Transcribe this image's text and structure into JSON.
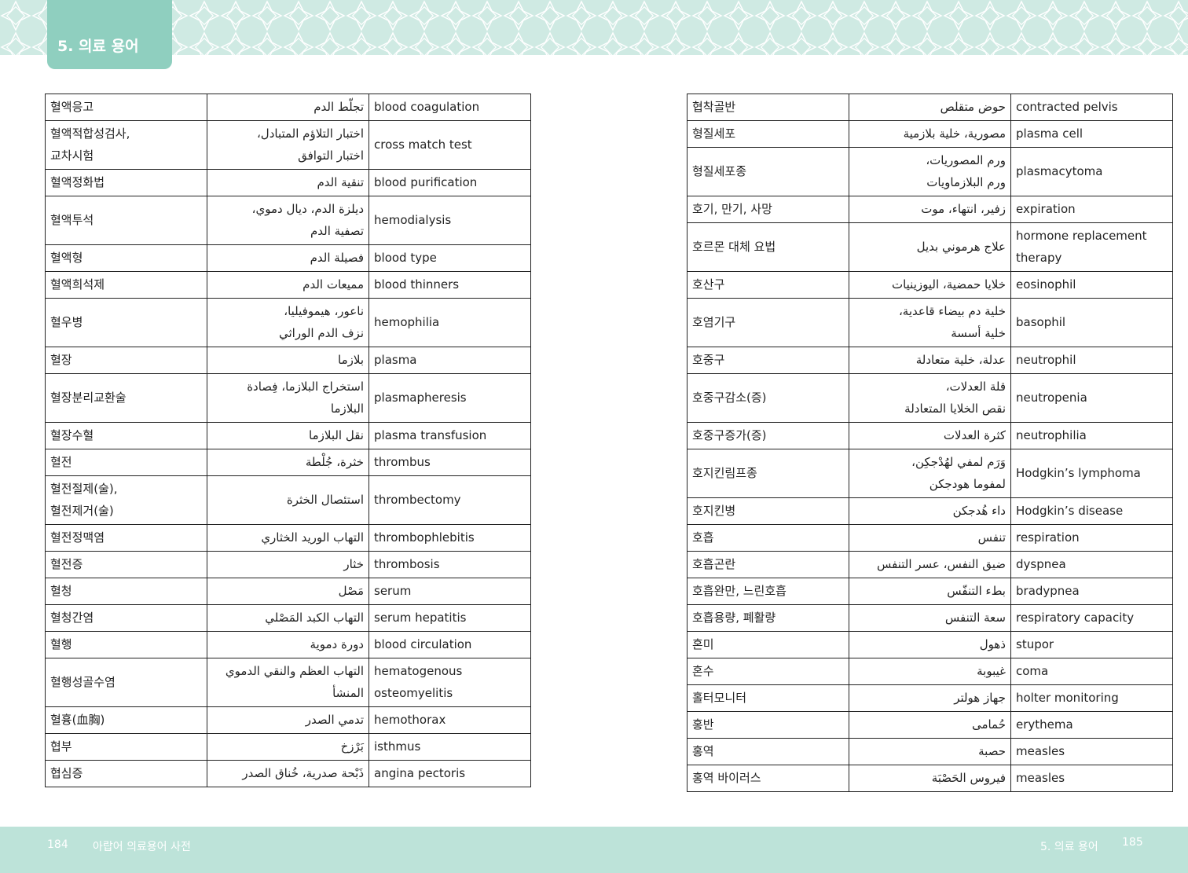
{
  "header": {
    "tab": "5. 의료 용어"
  },
  "tables": [
    {
      "rows": [
        [
          "혈액응고",
          "تجلّط الدم",
          "blood coagulation"
        ],
        [
          "혈액적합성검사,\n교차시험",
          "اختبار التلاؤم المتبادل،\nاختبار التوافق",
          "cross match test"
        ],
        [
          "혈액정화법",
          "تنقية الدم",
          "blood purification"
        ],
        [
          "혈액투석",
          "ديلزة الدم، ديال دموي،\nتصفية الدم",
          "hemodialysis"
        ],
        [
          "혈액형",
          "فصيلة الدم",
          "blood type"
        ],
        [
          "혈액희석제",
          "مميعات الدم",
          "blood thinners"
        ],
        [
          "혈우병",
          "ناعور، هيموفيليا،\nنزف الدم الوراثي",
          "hemophilia"
        ],
        [
          "혈장",
          "بلازما",
          "plasma"
        ],
        [
          "혈장분리교환술",
          "استخراج البلازما، فِصادة\nالبلازما",
          "plasmapheresis"
        ],
        [
          "혈장수혈",
          "نقل البلازما",
          "plasma transfusion"
        ],
        [
          "혈전",
          "خثرة، جُلْطة",
          "thrombus"
        ],
        [
          "혈전절제(술),\n혈전제거(술)",
          "استئصال الخثرة",
          "thrombectomy"
        ],
        [
          "혈전정맥염",
          "التهاب الوريد الخثاري",
          "thrombophlebitis"
        ],
        [
          "혈전증",
          "خثار",
          "thrombosis"
        ],
        [
          "혈청",
          "مَصْل",
          "serum"
        ],
        [
          "혈청간염",
          "التهاب الكبد المَصْلي",
          "serum hepatitis"
        ],
        [
          "혈행",
          "دورة دموية",
          "blood circulation"
        ],
        [
          "혈행성골수염",
          "التهاب العظم والنقي الدموي\nالمنشأ",
          "hematogenous\nosteomyelitis"
        ],
        [
          "혈흉(血胸)",
          "تدمي الصدر",
          "hemothorax"
        ],
        [
          "협부",
          "بَرْزخ",
          "isthmus"
        ],
        [
          "협심증",
          "ذَبْحة صدرية، خُناق الصدر",
          "angina pectoris"
        ]
      ]
    },
    {
      "rows": [
        [
          "협착골반",
          "حوض متقلص",
          "contracted pelvis"
        ],
        [
          "형질세포",
          "مصورية، خلية بلازمية",
          "plasma cell"
        ],
        [
          "형질세포종",
          "ورم المصوريات،\nورم البلازماويات",
          "plasmacytoma"
        ],
        [
          "호기, 만기, 사망",
          "زفير، انتهاء، موت",
          "expiration"
        ],
        [
          "호르몬 대체 요법",
          "علاج هرموني بديل",
          "hormone replacement\ntherapy"
        ],
        [
          "호산구",
          "خلايا حمضية، اليوزينيات",
          "eosinophil"
        ],
        [
          "호염기구",
          "خلية دم بيضاء قاعدية،\nخلية أسسة",
          "basophil"
        ],
        [
          "호중구",
          "عدلة، خلية متعادلة",
          "neutrophil"
        ],
        [
          "호중구감소(증)",
          "قلة العدلات،\nنقص الخلايا المتعادلة",
          "neutropenia"
        ],
        [
          "호중구증가(증)",
          "كثرة العدلات",
          "neutrophilia"
        ],
        [
          "호지킨림프종",
          "وَرَم لمفي لهُدْجكِن،\nلمفوما هودجكن",
          "Hodgkin’s lymphoma"
        ],
        [
          "호지킨병",
          "داء هُدجكن",
          "Hodgkin’s disease"
        ],
        [
          "호흡",
          "تنفس",
          "respiration"
        ],
        [
          "호흡곤란",
          "ضيق النفس، عسر التنفس",
          "dyspnea"
        ],
        [
          "호흡완만, 느린호흡",
          "بطء التنفّس",
          "bradypnea"
        ],
        [
          "호흡용량, 폐활량",
          "سعة التنفس",
          "respiratory capacity"
        ],
        [
          "혼미",
          "ذهول",
          "stupor"
        ],
        [
          "혼수",
          "غيبوبة",
          "coma"
        ],
        [
          "홀터모니터",
          "جهاز هولتر",
          "holter monitoring"
        ],
        [
          "홍반",
          "حُمامى",
          "erythema"
        ],
        [
          "홍역",
          "حصبة",
          "measles"
        ],
        [
          "홍역 바이러스",
          "فيروس الحَصْبَة",
          "measles"
        ]
      ]
    }
  ],
  "footer": {
    "left_page": "184",
    "left_title": "아랍어 의료용어 사전",
    "right_title": "5. 의료 용어",
    "right_page": "185"
  }
}
